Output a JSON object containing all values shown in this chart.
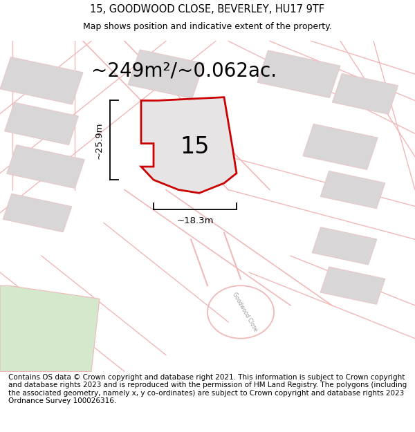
{
  "title": "15, GOODWOOD CLOSE, BEVERLEY, HU17 9TF",
  "subtitle": "Map shows position and indicative extent of the property.",
  "area_label": "~249m²/~0.062ac.",
  "property_number": "15",
  "dim_width": "~18.3m",
  "dim_height": "~25.9m",
  "footer": "Contains OS data © Crown copyright and database right 2021. This information is subject to Crown copyright and database rights 2023 and is reproduced with the permission of HM Land Registry. The polygons (including the associated geometry, namely x, y co-ordinates) are subject to Crown copyright and database rights 2023 Ordnance Survey 100026316.",
  "map_bg": "#f2f0f0",
  "property_fill": "#e6e4e4",
  "property_edge": "#cc0000",
  "road_color": "#f0b8b8",
  "building_color": "#d8d6d6",
  "building_edge": "#e8c8c8",
  "green_color": "#d4e8cc",
  "title_fontsize": 10.5,
  "subtitle_fontsize": 9,
  "area_fontsize": 20,
  "number_fontsize": 24,
  "dim_fontsize": 9.5,
  "footer_fontsize": 7.5
}
